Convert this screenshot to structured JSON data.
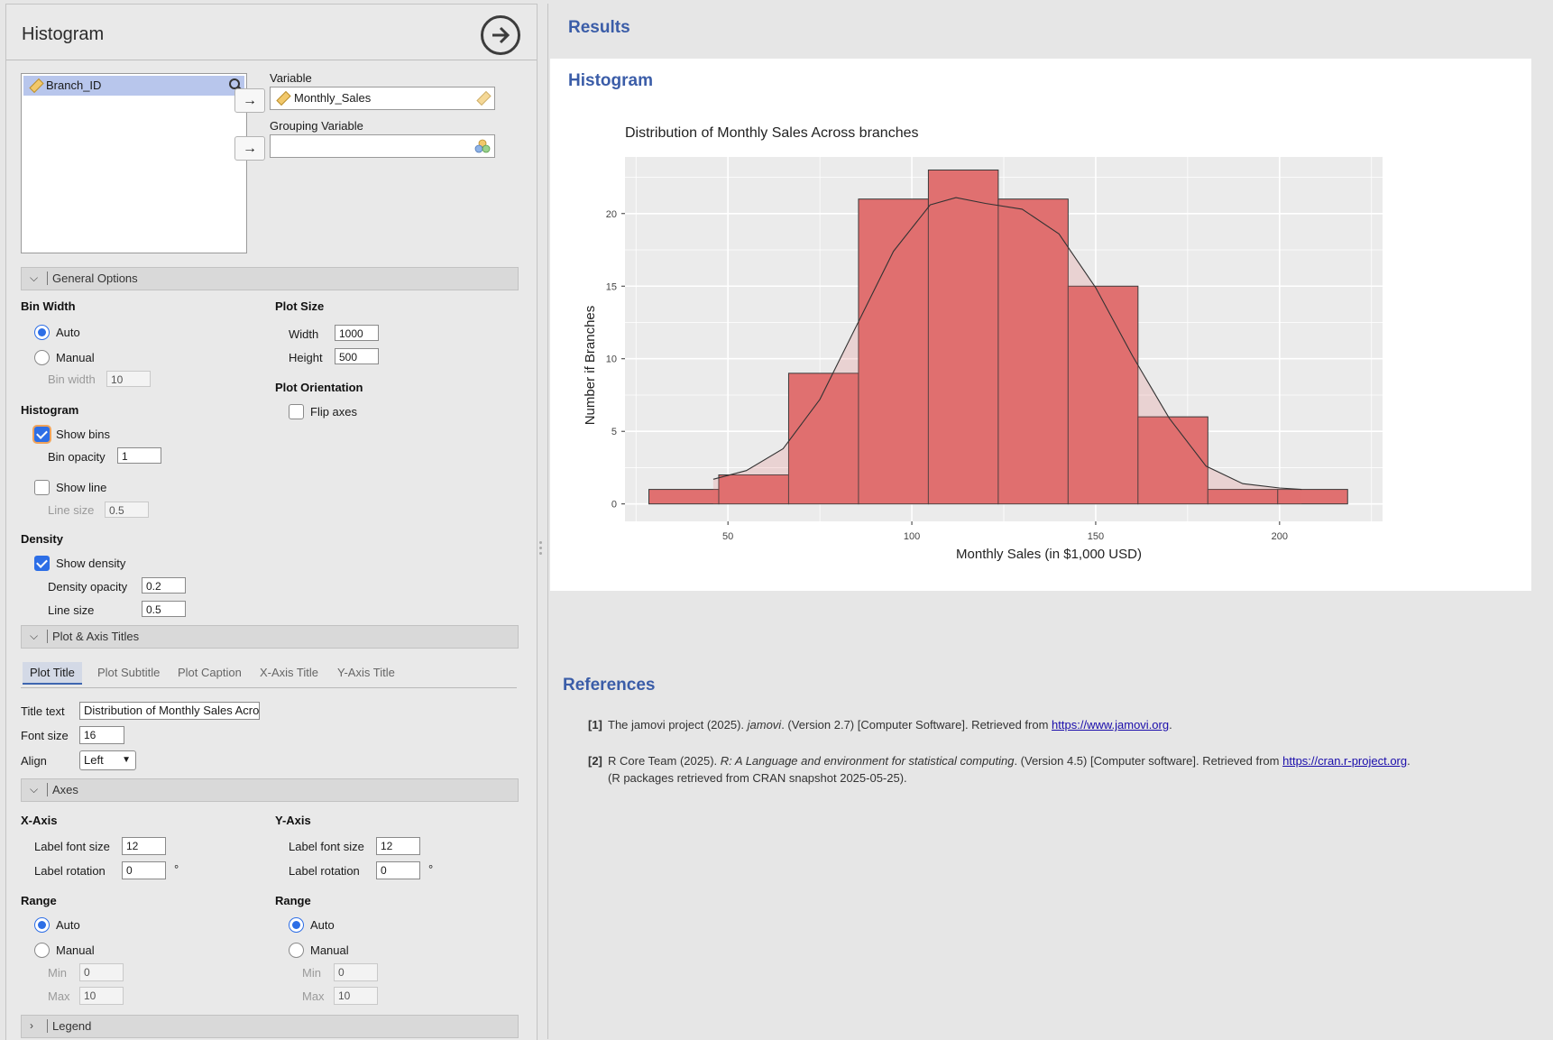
{
  "panel": {
    "title": "Histogram",
    "variables_list": [
      "Branch_ID"
    ],
    "variable_label": "Variable",
    "variable_value": "Monthly_Sales",
    "grouping_label": "Grouping Variable",
    "grouping_value": "",
    "arrow_glyph": "→"
  },
  "general_options": {
    "section_label": "General Options",
    "bin_width": {
      "title": "Bin Width",
      "auto_label": "Auto",
      "manual_label": "Manual",
      "bin_width_label": "Bin width",
      "bin_width_value": "10",
      "selected": "auto"
    },
    "plot_size": {
      "title": "Plot Size",
      "width_label": "Width",
      "width_value": "1000",
      "height_label": "Height",
      "height_value": "500"
    },
    "plot_orientation": {
      "title": "Plot Orientation",
      "flip_axes_label": "Flip axes",
      "flip_axes_checked": false
    },
    "histogram": {
      "title": "Histogram",
      "show_bins_label": "Show bins",
      "show_bins_checked": true,
      "bin_opacity_label": "Bin opacity",
      "bin_opacity_value": "1",
      "show_line_label": "Show line",
      "show_line_checked": false,
      "line_size_label": "Line size",
      "line_size_value": "0.5"
    },
    "density": {
      "title": "Density",
      "show_density_label": "Show density",
      "show_density_checked": true,
      "density_opacity_label": "Density opacity",
      "density_opacity_value": "0.2",
      "line_size_label": "Line size",
      "line_size_value": "0.5"
    }
  },
  "titles": {
    "section_label": "Plot & Axis Titles",
    "tabs": [
      "Plot Title",
      "Plot Subtitle",
      "Plot Caption",
      "X-Axis Title",
      "Y-Axis Title"
    ],
    "active_tab": "Plot Title",
    "title_text_label": "Title text",
    "title_text_value": "Distribution of Monthly Sales Across branches",
    "font_size_label": "Font size",
    "font_size_value": "16",
    "align_label": "Align",
    "align_value": "Left"
  },
  "axes": {
    "section_label": "Axes",
    "x": {
      "title": "X-Axis",
      "label_font_size_label": "Label font size",
      "label_font_size_value": "12",
      "label_rotation_label": "Label rotation",
      "label_rotation_value": "0",
      "degree": "°",
      "range_title": "Range",
      "auto_label": "Auto",
      "manual_label": "Manual",
      "min_label": "Min",
      "min_value": "0",
      "max_label": "Max",
      "max_value": "10",
      "selected": "auto"
    },
    "y": {
      "title": "Y-Axis",
      "label_font_size_label": "Label font size",
      "label_font_size_value": "12",
      "label_rotation_label": "Label rotation",
      "label_rotation_value": "0",
      "degree": "°",
      "range_title": "Range",
      "auto_label": "Auto",
      "manual_label": "Manual",
      "min_label": "Min",
      "min_value": "0",
      "max_label": "Max",
      "max_value": "10",
      "selected": "auto"
    }
  },
  "legend": {
    "section_label": "Legend"
  },
  "results": {
    "heading": "Results",
    "analysis_heading": "Histogram"
  },
  "chart_data": {
    "type": "bar",
    "title": "Distribution of Monthly Sales Across branches",
    "xlabel": "Monthly Sales (in $1,000 USD)",
    "ylabel": "Number if Branches",
    "xlim": [
      22,
      228
    ],
    "ylim": [
      -1.2,
      23.9
    ],
    "xticks": [
      50,
      100,
      150,
      200
    ],
    "yticks": [
      0,
      5,
      10,
      15,
      20
    ],
    "bins": [
      {
        "x0": 28.5,
        "x1": 47.5,
        "count": 1
      },
      {
        "x0": 47.5,
        "x1": 66.5,
        "count": 2
      },
      {
        "x0": 66.5,
        "x1": 85.5,
        "count": 9
      },
      {
        "x0": 85.5,
        "x1": 104.5,
        "count": 21
      },
      {
        "x0": 104.5,
        "x1": 123.5,
        "count": 23
      },
      {
        "x0": 123.5,
        "x1": 142.5,
        "count": 21
      },
      {
        "x0": 142.5,
        "x1": 161.5,
        "count": 15
      },
      {
        "x0": 161.5,
        "x1": 180.5,
        "count": 6
      },
      {
        "x0": 180.5,
        "x1": 199.5,
        "count": 1
      },
      {
        "x0": 199.5,
        "x1": 218.5,
        "count": 1
      }
    ],
    "density_curve": {
      "x": [
        46,
        55,
        65,
        75,
        85,
        95,
        105,
        112,
        120,
        130,
        140,
        150,
        160,
        170,
        180,
        190,
        200,
        206
      ],
      "y": [
        1.7,
        2.3,
        3.8,
        7.2,
        12.3,
        17.4,
        20.6,
        21.1,
        20.7,
        20.3,
        18.6,
        14.9,
        10.2,
        5.9,
        2.6,
        1.4,
        1.1,
        1.0
      ]
    },
    "bar_color": "#e07070",
    "bar_edge_color": "#3a3a3a",
    "density_fill": "#e07070",
    "density_opacity": 0.2,
    "panel_background": "#ebebeb",
    "grid": true,
    "legend": "none"
  },
  "references": {
    "heading": "References",
    "items": [
      {
        "num": "[1]",
        "pre": "The jamovi project (2025). ",
        "ital": "jamovi",
        "post": ". (Version 2.7) [Computer Software]. Retrieved from ",
        "link": "https://www.jamovi.org",
        "end": ".",
        "line2": ""
      },
      {
        "num": "[2]",
        "pre": "R Core Team (2025). ",
        "ital": "R: A Language and environment for statistical computing",
        "post": ". (Version 4.5) [Computer software]. Retrieved from ",
        "link": "https://cran.r-project.org",
        "end": ".",
        "line2": "(R packages retrieved from CRAN snapshot 2025-05-25)."
      }
    ]
  }
}
